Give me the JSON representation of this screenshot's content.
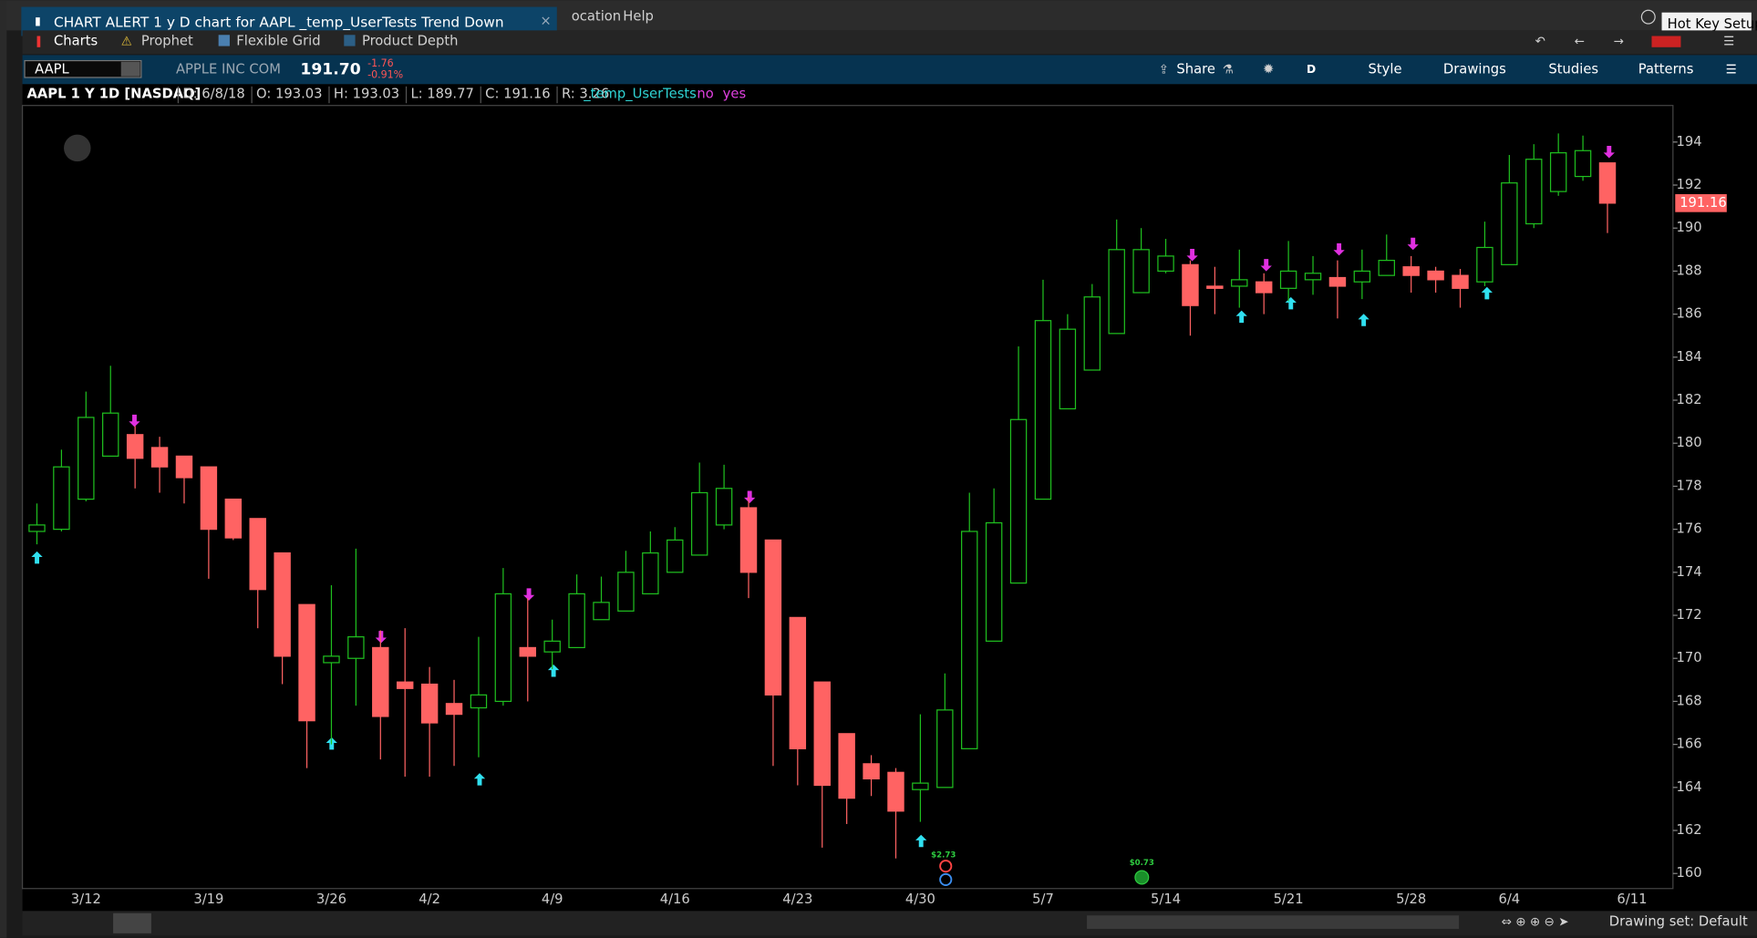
{
  "window": {
    "alert_title": "CHART ALERT 1 y D chart for AAPL _temp_UserTests Trend Down",
    "menu": [
      "ocation",
      "Help"
    ],
    "hot_key": "Hot Key Setup"
  },
  "tabs": [
    "Charts",
    "Prophet",
    "Flexible Grid",
    "Product Depth"
  ],
  "symbol_bar": {
    "symbol": "AAPL",
    "company": "APPLE INC COM",
    "last": "191.70",
    "change": "-1.76",
    "change_pct": "-0.91%",
    "buttons": [
      "Share",
      "D",
      "Style",
      "Drawings",
      "Studies",
      "Patterns"
    ]
  },
  "chart_data": {
    "type": "candlestick",
    "header": {
      "symbol": "AAPL 1 Y 1D [NASDAQ]",
      "fields": [
        "D: 6/8/18",
        "O: 193.03",
        "H: 193.03",
        "L: 189.77",
        "C: 191.16",
        "R: 3.26"
      ],
      "study": "_temp_UserTests",
      "flags": [
        "no",
        "yes"
      ]
    },
    "categories": [
      null,
      null,
      "3/12",
      null,
      null,
      null,
      null,
      "3/19",
      null,
      null,
      null,
      null,
      "3/26",
      null,
      null,
      null,
      "4/2",
      null,
      null,
      null,
      null,
      "4/9",
      null,
      null,
      null,
      null,
      "4/16",
      null,
      null,
      null,
      null,
      "4/23",
      null,
      null,
      null,
      null,
      "4/30",
      null,
      null,
      null,
      null,
      "5/7",
      null,
      null,
      null,
      null,
      "5/14",
      null,
      null,
      null,
      null,
      "5/21",
      null,
      null,
      null,
      null,
      "5/28",
      null,
      null,
      null,
      "6/4",
      null,
      null,
      null,
      null,
      "6/11"
    ],
    "open": [
      175.9,
      176.0,
      177.4,
      179.4,
      180.4,
      179.8,
      179.4,
      178.9,
      177.4,
      176.5,
      174.9,
      172.5,
      169.8,
      170.0,
      170.5,
      168.9,
      168.8,
      167.9,
      167.7,
      168.0,
      170.5,
      170.3,
      170.5,
      171.8,
      172.2,
      173.0,
      174.0,
      174.8,
      176.2,
      177.0,
      175.5,
      171.9,
      168.9,
      166.5,
      165.1,
      164.7,
      163.9,
      164.0,
      165.8,
      170.8,
      173.5,
      177.4,
      181.6,
      183.4,
      185.1,
      187.0,
      188.0,
      188.3,
      187.3,
      187.3,
      187.5,
      187.2,
      187.6,
      187.7,
      187.5,
      187.8,
      188.2,
      188.0,
      187.8,
      187.5,
      188.3,
      190.2,
      191.7,
      192.4,
      193.03,
      null
    ],
    "high": [
      177.2,
      179.7,
      182.4,
      183.6,
      180.8,
      180.3,
      179.4,
      178.9,
      177.4,
      176.5,
      174.9,
      172.5,
      173.4,
      175.1,
      171.3,
      171.4,
      169.6,
      169.0,
      171.0,
      174.2,
      172.8,
      171.8,
      173.9,
      173.8,
      175.0,
      175.9,
      176.1,
      179.1,
      179.0,
      177.5,
      175.5,
      171.9,
      168.9,
      166.5,
      165.5,
      164.9,
      167.4,
      169.3,
      177.7,
      177.9,
      184.5,
      187.6,
      186.0,
      187.4,
      190.4,
      190.0,
      189.5,
      188.5,
      188.2,
      189.0,
      187.9,
      189.4,
      188.7,
      188.5,
      189.0,
      189.7,
      188.7,
      188.2,
      188.1,
      190.3,
      193.4,
      193.9,
      194.4,
      194.3,
      193.03,
      null
    ],
    "low": [
      175.3,
      175.9,
      177.3,
      179.4,
      177.9,
      177.7,
      177.2,
      173.7,
      175.5,
      171.4,
      168.8,
      164.9,
      166.0,
      167.8,
      165.3,
      164.5,
      164.5,
      165.0,
      165.4,
      167.8,
      168.0,
      169.5,
      170.5,
      171.8,
      172.2,
      173.0,
      174.0,
      174.8,
      176.0,
      172.8,
      165.0,
      164.1,
      161.2,
      162.3,
      163.6,
      160.7,
      162.4,
      164.0,
      165.8,
      170.8,
      173.5,
      177.4,
      181.6,
      183.4,
      185.1,
      187.0,
      187.9,
      185.0,
      186.0,
      186.3,
      186.0,
      186.6,
      186.9,
      185.8,
      186.7,
      187.8,
      187.0,
      187.0,
      186.3,
      187.3,
      188.3,
      190.0,
      191.5,
      192.2,
      189.77,
      null
    ],
    "close": [
      176.2,
      178.9,
      181.2,
      181.4,
      179.3,
      178.9,
      178.4,
      176.0,
      175.6,
      173.2,
      170.1,
      167.1,
      170.1,
      171.0,
      167.3,
      168.6,
      167.0,
      167.4,
      168.3,
      173.0,
      170.1,
      170.8,
      173.0,
      172.6,
      174.0,
      174.9,
      175.5,
      177.7,
      177.9,
      174.0,
      168.3,
      165.8,
      164.1,
      163.5,
      164.4,
      162.9,
      164.2,
      167.6,
      175.9,
      176.3,
      181.1,
      185.7,
      185.3,
      186.8,
      189.0,
      189.0,
      188.7,
      186.4,
      187.2,
      187.6,
      187.0,
      188.0,
      187.9,
      187.3,
      188.0,
      188.5,
      187.8,
      187.6,
      187.2,
      189.1,
      192.1,
      193.2,
      193.5,
      193.6,
      191.16,
      null
    ],
    "up_color": "#1fbf1f",
    "down_color": "#ff6363",
    "ylim": [
      159.3,
      195.7
    ],
    "yticks": [
      160,
      162,
      164,
      166,
      168,
      170,
      172,
      174,
      176,
      178,
      180,
      182,
      184,
      186,
      188,
      190,
      192,
      194
    ],
    "events": [
      "$2.73",
      "$0.73"
    ]
  },
  "status": {
    "drawing_set": "Drawing set: Default"
  }
}
